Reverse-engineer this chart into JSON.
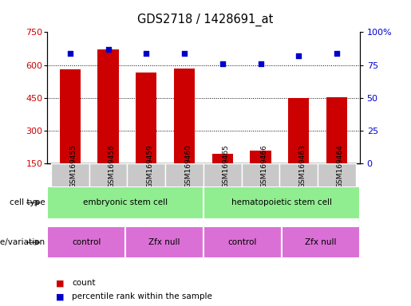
{
  "title": "GDS2718 / 1428691_at",
  "samples": [
    "GSM169455",
    "GSM169456",
    "GSM169459",
    "GSM169460",
    "GSM169465",
    "GSM169466",
    "GSM169463",
    "GSM169464"
  ],
  "counts": [
    580,
    670,
    565,
    585,
    195,
    210,
    450,
    455
  ],
  "percentile_ranks": [
    84,
    87,
    84,
    84,
    76,
    76,
    82,
    84
  ],
  "ylim_left": [
    150,
    750
  ],
  "ylim_right": [
    0,
    100
  ],
  "yticks_left": [
    150,
    300,
    450,
    600,
    750
  ],
  "yticks_right": [
    0,
    25,
    50,
    75,
    100
  ],
  "cell_types": [
    {
      "label": "embryonic stem cell",
      "start": 0,
      "end": 4,
      "color": "#90ee90"
    },
    {
      "label": "hematopoietic stem cell",
      "start": 4,
      "end": 8,
      "color": "#90ee90"
    }
  ],
  "genotypes": [
    {
      "label": "control",
      "start": 0,
      "end": 2,
      "color": "#da70d6"
    },
    {
      "label": "Zfx null",
      "start": 2,
      "end": 4,
      "color": "#da70d6"
    },
    {
      "label": "control",
      "start": 4,
      "end": 6,
      "color": "#da70d6"
    },
    {
      "label": "Zfx null",
      "start": 6,
      "end": 8,
      "color": "#da70d6"
    }
  ],
  "bar_color": "#cc0000",
  "scatter_color": "#0000cc",
  "left_axis_color": "#cc0000",
  "right_axis_color": "#0000cc",
  "background_color": "#ffffff",
  "plot_bg_color": "#ffffff",
  "grid_color": "#000000",
  "sample_bg_color": "#c8c8c8",
  "legend_count_color": "#cc0000",
  "legend_percentile_color": "#0000cc"
}
